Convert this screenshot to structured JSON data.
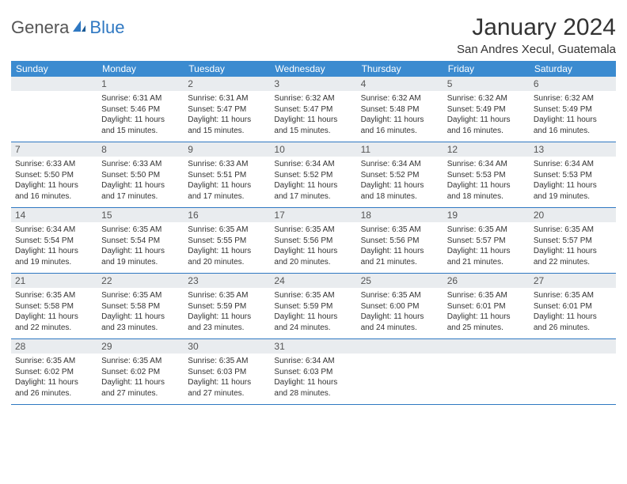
{
  "logo": {
    "part1": "Genera",
    "part2": "Blue"
  },
  "title": "January 2024",
  "subtitle": "San Andres Xecul, Guatemala",
  "header_bg": "#3b8bd0",
  "header_text": "#ffffff",
  "daynum_bg": "#e9ecef",
  "border_color": "#2f78c2",
  "weekdays": [
    "Sunday",
    "Monday",
    "Tuesday",
    "Wednesday",
    "Thursday",
    "Friday",
    "Saturday"
  ],
  "start_offset": 1,
  "days": [
    {
      "n": 1,
      "sr": "6:31 AM",
      "ss": "5:46 PM",
      "dl": "11 hours and 15 minutes."
    },
    {
      "n": 2,
      "sr": "6:31 AM",
      "ss": "5:47 PM",
      "dl": "11 hours and 15 minutes."
    },
    {
      "n": 3,
      "sr": "6:32 AM",
      "ss": "5:47 PM",
      "dl": "11 hours and 15 minutes."
    },
    {
      "n": 4,
      "sr": "6:32 AM",
      "ss": "5:48 PM",
      "dl": "11 hours and 16 minutes."
    },
    {
      "n": 5,
      "sr": "6:32 AM",
      "ss": "5:49 PM",
      "dl": "11 hours and 16 minutes."
    },
    {
      "n": 6,
      "sr": "6:32 AM",
      "ss": "5:49 PM",
      "dl": "11 hours and 16 minutes."
    },
    {
      "n": 7,
      "sr": "6:33 AM",
      "ss": "5:50 PM",
      "dl": "11 hours and 16 minutes."
    },
    {
      "n": 8,
      "sr": "6:33 AM",
      "ss": "5:50 PM",
      "dl": "11 hours and 17 minutes."
    },
    {
      "n": 9,
      "sr": "6:33 AM",
      "ss": "5:51 PM",
      "dl": "11 hours and 17 minutes."
    },
    {
      "n": 10,
      "sr": "6:34 AM",
      "ss": "5:52 PM",
      "dl": "11 hours and 17 minutes."
    },
    {
      "n": 11,
      "sr": "6:34 AM",
      "ss": "5:52 PM",
      "dl": "11 hours and 18 minutes."
    },
    {
      "n": 12,
      "sr": "6:34 AM",
      "ss": "5:53 PM",
      "dl": "11 hours and 18 minutes."
    },
    {
      "n": 13,
      "sr": "6:34 AM",
      "ss": "5:53 PM",
      "dl": "11 hours and 19 minutes."
    },
    {
      "n": 14,
      "sr": "6:34 AM",
      "ss": "5:54 PM",
      "dl": "11 hours and 19 minutes."
    },
    {
      "n": 15,
      "sr": "6:35 AM",
      "ss": "5:54 PM",
      "dl": "11 hours and 19 minutes."
    },
    {
      "n": 16,
      "sr": "6:35 AM",
      "ss": "5:55 PM",
      "dl": "11 hours and 20 minutes."
    },
    {
      "n": 17,
      "sr": "6:35 AM",
      "ss": "5:56 PM",
      "dl": "11 hours and 20 minutes."
    },
    {
      "n": 18,
      "sr": "6:35 AM",
      "ss": "5:56 PM",
      "dl": "11 hours and 21 minutes."
    },
    {
      "n": 19,
      "sr": "6:35 AM",
      "ss": "5:57 PM",
      "dl": "11 hours and 21 minutes."
    },
    {
      "n": 20,
      "sr": "6:35 AM",
      "ss": "5:57 PM",
      "dl": "11 hours and 22 minutes."
    },
    {
      "n": 21,
      "sr": "6:35 AM",
      "ss": "5:58 PM",
      "dl": "11 hours and 22 minutes."
    },
    {
      "n": 22,
      "sr": "6:35 AM",
      "ss": "5:58 PM",
      "dl": "11 hours and 23 minutes."
    },
    {
      "n": 23,
      "sr": "6:35 AM",
      "ss": "5:59 PM",
      "dl": "11 hours and 23 minutes."
    },
    {
      "n": 24,
      "sr": "6:35 AM",
      "ss": "5:59 PM",
      "dl": "11 hours and 24 minutes."
    },
    {
      "n": 25,
      "sr": "6:35 AM",
      "ss": "6:00 PM",
      "dl": "11 hours and 24 minutes."
    },
    {
      "n": 26,
      "sr": "6:35 AM",
      "ss": "6:01 PM",
      "dl": "11 hours and 25 minutes."
    },
    {
      "n": 27,
      "sr": "6:35 AM",
      "ss": "6:01 PM",
      "dl": "11 hours and 26 minutes."
    },
    {
      "n": 28,
      "sr": "6:35 AM",
      "ss": "6:02 PM",
      "dl": "11 hours and 26 minutes."
    },
    {
      "n": 29,
      "sr": "6:35 AM",
      "ss": "6:02 PM",
      "dl": "11 hours and 27 minutes."
    },
    {
      "n": 30,
      "sr": "6:35 AM",
      "ss": "6:03 PM",
      "dl": "11 hours and 27 minutes."
    },
    {
      "n": 31,
      "sr": "6:34 AM",
      "ss": "6:03 PM",
      "dl": "11 hours and 28 minutes."
    }
  ],
  "labels": {
    "sunrise": "Sunrise:",
    "sunset": "Sunset:",
    "daylight": "Daylight:"
  }
}
